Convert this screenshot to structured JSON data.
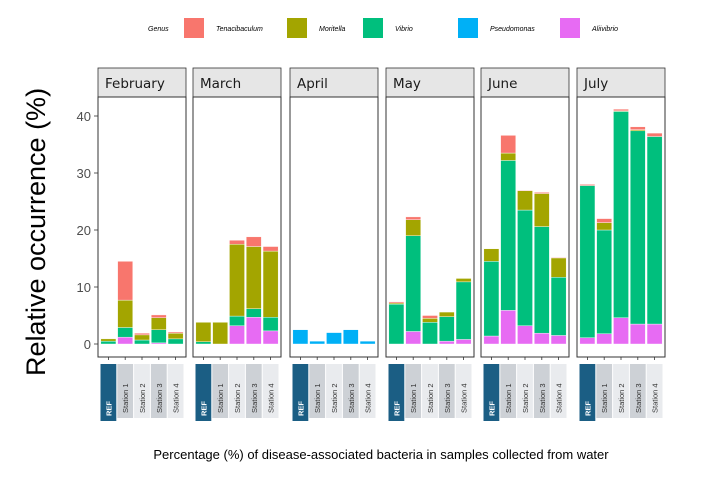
{
  "chart_data": {
    "type": "bar",
    "stacked": true,
    "title": "",
    "xlabel": "Percentage (%) of disease-associated bacteria in samples collected from water",
    "ylabel": "Relative occurrence (%)",
    "ylim": [
      0,
      43
    ],
    "yticks": [
      0,
      10,
      20,
      30,
      40
    ],
    "grid": false,
    "legend": {
      "title": "Genus",
      "position": "top",
      "entries": [
        {
          "name": "Tenacibaculum",
          "color": "#F8766D"
        },
        {
          "name": "Moritella",
          "color": "#A3A500"
        },
        {
          "name": "Vibrio",
          "color": "#00BF7D"
        },
        {
          "name": "Pseudomonas",
          "color": "#00B0F6"
        },
        {
          "name": "Aliivibrio",
          "color": "#E76BF3"
        }
      ]
    },
    "stack_order_bottom_to_top": [
      "Aliivibrio",
      "Pseudomonas",
      "Vibrio",
      "Moritella",
      "Tenacibaculum"
    ],
    "categories": [
      "REF",
      "Station 1",
      "Station 2",
      "Station 3",
      "Station 4"
    ],
    "category_colors": {
      "REF": "#1B5E84",
      "Station 1": "#CDD1D6",
      "Station 2": "#E9EBEE",
      "Station 3": "#CDD1D6",
      "Station 4": "#E9EBEE"
    },
    "category_text_colors": {
      "REF": "#ffffff",
      "Station 1": "#333333",
      "Station 2": "#333333",
      "Station 3": "#333333",
      "Station 4": "#333333"
    },
    "panels": [
      {
        "month": "February",
        "series": {
          "Aliivibrio": [
            0.0,
            1.2,
            0.0,
            0.2,
            0.0
          ],
          "Pseudomonas": [
            0.0,
            0.0,
            0.0,
            0.0,
            0.0
          ],
          "Vibrio": [
            0.5,
            1.7,
            0.7,
            2.3,
            0.9
          ],
          "Moritella": [
            0.4,
            4.8,
            0.9,
            2.1,
            1.0
          ],
          "Tenacibaculum": [
            0.0,
            6.8,
            0.3,
            0.5,
            0.2
          ]
        }
      },
      {
        "month": "March",
        "series": {
          "Aliivibrio": [
            0.0,
            0.0,
            3.2,
            4.7,
            2.3
          ],
          "Pseudomonas": [
            0.0,
            0.0,
            0.0,
            0.0,
            0.0
          ],
          "Vibrio": [
            0.4,
            0.0,
            1.7,
            1.5,
            2.4
          ],
          "Moritella": [
            3.4,
            3.8,
            12.6,
            10.9,
            11.6
          ],
          "Tenacibaculum": [
            0.0,
            0.0,
            0.7,
            1.7,
            0.8
          ]
        }
      },
      {
        "month": "April",
        "series": {
          "Aliivibrio": [
            0.0,
            0.0,
            0.0,
            0.0,
            0.0
          ],
          "Pseudomonas": [
            2.5,
            0.5,
            2.0,
            2.5,
            0.5
          ],
          "Vibrio": [
            0.0,
            0.0,
            0.0,
            0.0,
            0.0
          ],
          "Moritella": [
            0.0,
            0.0,
            0.0,
            0.0,
            0.0
          ],
          "Tenacibaculum": [
            0.0,
            0.0,
            0.0,
            0.0,
            0.0
          ]
        }
      },
      {
        "month": "May",
        "series": {
          "Aliivibrio": [
            0.0,
            2.2,
            0.0,
            0.5,
            0.8
          ],
          "Pseudomonas": [
            0.0,
            0.0,
            0.0,
            0.0,
            0.0
          ],
          "Vibrio": [
            7.0,
            16.8,
            3.8,
            4.3,
            10.1
          ],
          "Moritella": [
            0.2,
            2.8,
            0.7,
            0.8,
            0.6
          ],
          "Tenacibaculum": [
            0.2,
            0.5,
            0.5,
            0.0,
            0.0
          ]
        }
      },
      {
        "month": "June",
        "series": {
          "Aliivibrio": [
            1.4,
            5.9,
            3.2,
            1.9,
            1.5
          ],
          "Pseudomonas": [
            0.0,
            0.0,
            0.0,
            0.0,
            0.0
          ],
          "Vibrio": [
            13.1,
            26.3,
            20.3,
            18.7,
            10.2
          ],
          "Moritella": [
            2.2,
            1.3,
            3.4,
            5.8,
            3.4
          ],
          "Tenacibaculum": [
            0.0,
            3.1,
            0.1,
            0.2,
            0.1
          ]
        }
      },
      {
        "month": "July",
        "series": {
          "Aliivibrio": [
            1.1,
            1.8,
            4.6,
            3.5,
            3.5
          ],
          "Pseudomonas": [
            0.0,
            0.0,
            0.0,
            0.0,
            0.0
          ],
          "Vibrio": [
            26.7,
            18.2,
            36.2,
            33.9,
            32.9
          ],
          "Moritella": [
            0.0,
            1.3,
            0.1,
            0.2,
            0.0
          ],
          "Tenacibaculum": [
            0.2,
            0.7,
            0.3,
            0.5,
            0.6
          ]
        }
      }
    ]
  }
}
